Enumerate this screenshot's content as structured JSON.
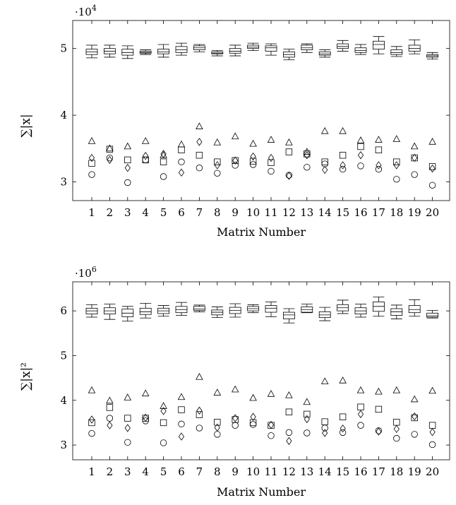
{
  "chart_data": [
    {
      "type": "box",
      "xlabel": "Matrix Number",
      "ylabel": "∑|x|",
      "multiplier": {
        "base": "·10",
        "exponent": "4"
      },
      "yticks": [
        "3",
        "4",
        "5"
      ],
      "ytick_values": [
        3,
        4,
        5
      ],
      "ylim": [
        2.72,
        5.42
      ],
      "categories": [
        "1",
        "2",
        "3",
        "4",
        "5",
        "6",
        "7",
        "8",
        "9",
        "10",
        "11",
        "12",
        "13",
        "14",
        "15",
        "16",
        "17",
        "18",
        "19",
        "20"
      ],
      "boxes": {
        "whisker_low": [
          4.86,
          4.87,
          4.85,
          4.91,
          4.87,
          4.9,
          4.95,
          4.89,
          4.89,
          4.97,
          4.9,
          4.83,
          4.94,
          4.87,
          4.96,
          4.91,
          4.92,
          4.88,
          4.92,
          4.84
        ],
        "q1": [
          4.91,
          4.92,
          4.9,
          4.93,
          4.92,
          4.94,
          4.98,
          4.92,
          4.93,
          5.0,
          4.96,
          4.87,
          4.98,
          4.9,
          5.0,
          4.94,
          4.99,
          4.91,
          4.96,
          4.87
        ],
        "median": [
          4.95,
          4.96,
          4.94,
          4.94,
          4.95,
          4.98,
          5.01,
          4.93,
          4.96,
          5.02,
          5.01,
          4.91,
          5.01,
          4.92,
          5.03,
          4.97,
          5.06,
          4.94,
          5.0,
          4.89
        ],
        "q3": [
          4.99,
          5.0,
          4.99,
          4.96,
          4.99,
          5.03,
          5.04,
          4.95,
          5.0,
          5.05,
          5.04,
          4.95,
          5.05,
          4.95,
          5.07,
          5.01,
          5.11,
          4.98,
          5.05,
          4.91
        ],
        "whisker_high": [
          5.05,
          5.05,
          5.04,
          4.98,
          5.06,
          5.08,
          5.06,
          4.97,
          5.05,
          5.08,
          5.07,
          4.99,
          5.07,
          4.98,
          5.12,
          5.06,
          5.18,
          5.03,
          5.13,
          4.94
        ]
      },
      "markers": {
        "triangle": [
          3.61,
          3.5,
          3.53,
          3.61,
          3.4,
          3.56,
          3.83,
          3.59,
          3.68,
          3.57,
          3.63,
          3.59,
          3.45,
          3.76,
          3.76,
          3.62,
          3.63,
          3.64,
          3.53,
          3.6
        ],
        "square": [
          3.28,
          3.49,
          3.33,
          3.33,
          3.3,
          3.48,
          3.4,
          3.3,
          3.32,
          3.31,
          3.29,
          3.45,
          3.42,
          3.3,
          3.4,
          3.53,
          3.48,
          3.3,
          3.36,
          3.23
        ],
        "diamond": [
          3.36,
          3.33,
          3.21,
          3.39,
          3.42,
          3.14,
          3.6,
          3.25,
          3.32,
          3.38,
          3.36,
          3.09,
          3.4,
          3.18,
          3.25,
          3.4,
          3.25,
          3.25,
          3.36,
          3.2
        ],
        "circle": [
          3.11,
          3.36,
          2.99,
          3.33,
          3.08,
          3.3,
          3.21,
          3.13,
          3.25,
          3.26,
          3.16,
          3.1,
          3.22,
          3.27,
          3.19,
          3.24,
          3.19,
          3.04,
          3.11,
          2.95
        ]
      }
    },
    {
      "type": "box",
      "xlabel": "Matrix Number",
      "ylabel": "∑|x|²",
      "multiplier": {
        "base": "·10",
        "exponent": "6"
      },
      "yticks": [
        "3",
        "4",
        "5",
        "6"
      ],
      "ytick_values": [
        3,
        4,
        5,
        6
      ],
      "ylim": [
        2.67,
        6.65
      ],
      "categories": [
        "1",
        "2",
        "3",
        "4",
        "5",
        "6",
        "7",
        "8",
        "9",
        "10",
        "11",
        "12",
        "13",
        "14",
        "15",
        "16",
        "17",
        "18",
        "19",
        "20"
      ],
      "boxes": {
        "whisker_low": [
          5.86,
          5.81,
          5.77,
          5.84,
          5.88,
          5.9,
          5.98,
          5.85,
          5.86,
          5.96,
          5.87,
          5.73,
          5.96,
          5.78,
          5.94,
          5.86,
          5.88,
          5.82,
          5.88,
          5.84
        ],
        "q1": [
          5.93,
          5.93,
          5.87,
          5.92,
          5.94,
          5.96,
          6.01,
          5.91,
          5.94,
          6.0,
          5.97,
          5.82,
          5.97,
          5.85,
          6.0,
          5.93,
          5.99,
          5.9,
          5.96,
          5.86
        ],
        "median": [
          6.0,
          6.0,
          5.95,
          5.98,
          6.0,
          6.03,
          6.04,
          5.97,
          6.01,
          6.05,
          6.06,
          5.91,
          6.03,
          5.91,
          6.07,
          6.0,
          6.1,
          5.98,
          6.03,
          5.89
        ],
        "q3": [
          6.06,
          6.07,
          6.04,
          6.06,
          6.06,
          6.1,
          6.1,
          6.02,
          6.08,
          6.1,
          6.12,
          5.97,
          6.09,
          5.98,
          6.14,
          6.07,
          6.2,
          6.05,
          6.12,
          5.95
        ],
        "whisker_high": [
          6.14,
          6.15,
          6.1,
          6.17,
          6.12,
          6.19,
          6.13,
          6.09,
          6.16,
          6.14,
          6.2,
          6.05,
          6.15,
          6.08,
          6.24,
          6.15,
          6.31,
          6.13,
          6.25,
          6.01
        ]
      },
      "markers": {
        "triangle": [
          4.22,
          3.99,
          4.06,
          4.15,
          3.87,
          4.07,
          4.52,
          4.17,
          4.24,
          4.05,
          4.14,
          4.11,
          3.96,
          4.42,
          4.44,
          4.22,
          4.19,
          4.22,
          4.02,
          4.21
        ],
        "square": [
          3.5,
          3.84,
          3.6,
          3.6,
          3.5,
          3.79,
          3.68,
          3.51,
          3.57,
          3.5,
          3.44,
          3.74,
          3.69,
          3.52,
          3.63,
          3.85,
          3.8,
          3.51,
          3.61,
          3.44
        ],
        "diamond": [
          3.57,
          3.44,
          3.38,
          3.61,
          3.76,
          3.19,
          3.77,
          3.39,
          3.6,
          3.63,
          3.45,
          3.09,
          3.58,
          3.27,
          3.37,
          3.69,
          3.3,
          3.36,
          3.64,
          3.29
        ],
        "circle": [
          3.26,
          3.6,
          3.06,
          3.54,
          3.05,
          3.47,
          3.38,
          3.24,
          3.44,
          3.46,
          3.21,
          3.28,
          3.27,
          3.38,
          3.28,
          3.44,
          3.32,
          3.15,
          3.24,
          3.01
        ]
      }
    }
  ]
}
